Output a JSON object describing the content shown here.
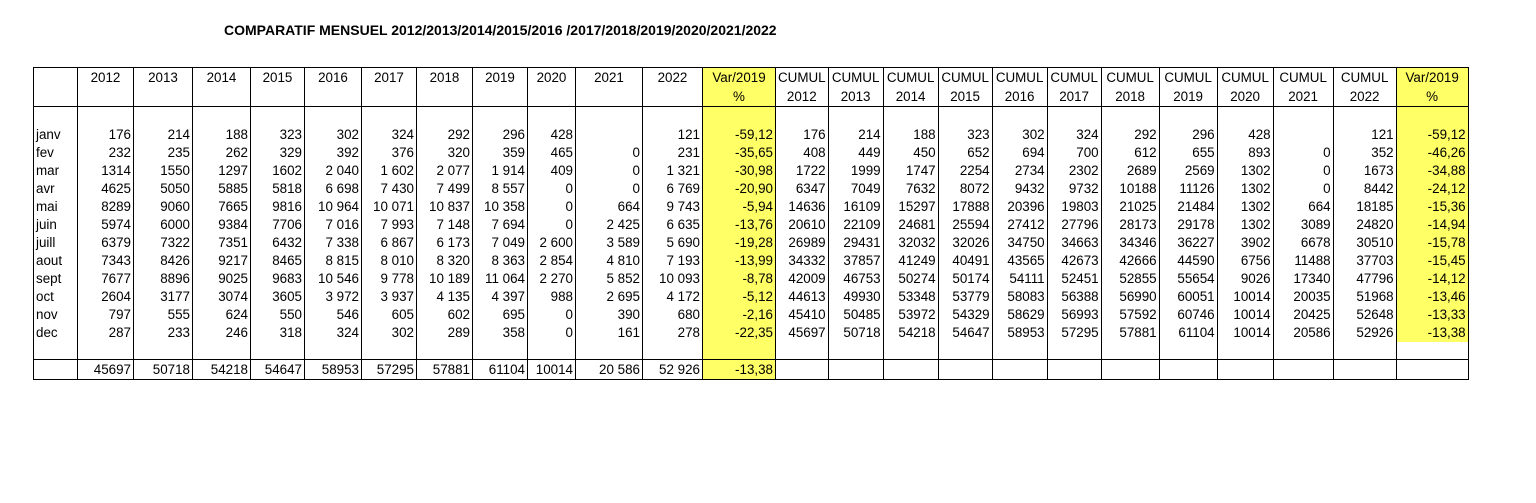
{
  "title": "COMPARATIF MENSUEL 2012/2013/2014/2015/2016 /2017/2018/2019/2020/2021/2022",
  "header_row1": [
    "",
    "2012",
    "2013",
    "2014",
    "2015",
    "2016",
    "2017",
    "2018",
    "2019",
    "2020",
    "2021",
    "2022",
    "Var/2019",
    "CUMUL",
    "CUMUL",
    "CUMUL",
    "CUMUL",
    "CUMUL",
    "CUMUL",
    "CUMUL",
    "CUMUL",
    "CUMUL",
    "CUMUL",
    "CUMUL",
    "Var/2019"
  ],
  "header_row2": [
    "",
    "",
    "",
    "",
    "",
    "",
    "",
    "",
    "",
    "",
    "",
    "",
    "%",
    "2012",
    "2013",
    "2014",
    "2015",
    "2016",
    "2017",
    "2018",
    "2019",
    "2020",
    "2021",
    "2022",
    "%"
  ],
  "rows": [
    [
      "janv",
      "176",
      "214",
      "188",
      "323",
      "302",
      "324",
      "292",
      "296",
      "428",
      "",
      "121",
      "-59,12",
      "176",
      "214",
      "188",
      "323",
      "302",
      "324",
      "292",
      "296",
      "428",
      "",
      "121",
      "-59,12"
    ],
    [
      "fev",
      "232",
      "235",
      "262",
      "329",
      "392",
      "376",
      "320",
      "359",
      "465",
      "0",
      "231",
      "-35,65",
      "408",
      "449",
      "450",
      "652",
      "694",
      "700",
      "612",
      "655",
      "893",
      "0",
      "352",
      "-46,26"
    ],
    [
      "mar",
      "1314",
      "1550",
      "1297",
      "1602",
      "2 040",
      "1 602",
      "2 077",
      "1 914",
      "409",
      "0",
      "1 321",
      "-30,98",
      "1722",
      "1999",
      "1747",
      "2254",
      "2734",
      "2302",
      "2689",
      "2569",
      "1302",
      "0",
      "1673",
      "-34,88"
    ],
    [
      "avr",
      "4625",
      "5050",
      "5885",
      "5818",
      "6 698",
      "7 430",
      "7 499",
      "8 557",
      "0",
      "0",
      "6 769",
      "-20,90",
      "6347",
      "7049",
      "7632",
      "8072",
      "9432",
      "9732",
      "10188",
      "11126",
      "1302",
      "0",
      "8442",
      "-24,12"
    ],
    [
      "mai",
      "8289",
      "9060",
      "7665",
      "9816",
      "10 964",
      "10 071",
      "10 837",
      "10 358",
      "0",
      "664",
      "9 743",
      "-5,94",
      "14636",
      "16109",
      "15297",
      "17888",
      "20396",
      "19803",
      "21025",
      "21484",
      "1302",
      "664",
      "18185",
      "-15,36"
    ],
    [
      "juin",
      "5974",
      "6000",
      "9384",
      "7706",
      "7 016",
      "7 993",
      "7 148",
      "7 694",
      "0",
      "2 425",
      "6 635",
      "-13,76",
      "20610",
      "22109",
      "24681",
      "25594",
      "27412",
      "27796",
      "28173",
      "29178",
      "1302",
      "3089",
      "24820",
      "-14,94"
    ],
    [
      "juill",
      "6379",
      "7322",
      "7351",
      "6432",
      "7 338",
      "6 867",
      "6 173",
      "7 049",
      "2 600",
      "3 589",
      "5 690",
      "-19,28",
      "26989",
      "29431",
      "32032",
      "32026",
      "34750",
      "34663",
      "34346",
      "36227",
      "3902",
      "6678",
      "30510",
      "-15,78"
    ],
    [
      "aout",
      "7343",
      "8426",
      "9217",
      "8465",
      "8 815",
      "8 010",
      "8 320",
      "8 363",
      "2 854",
      "4 810",
      "7 193",
      "-13,99",
      "34332",
      "37857",
      "41249",
      "40491",
      "43565",
      "42673",
      "42666",
      "44590",
      "6756",
      "11488",
      "37703",
      "-15,45"
    ],
    [
      "sept",
      "7677",
      "8896",
      "9025",
      "9683",
      "10 546",
      "9 778",
      "10 189",
      "11 064",
      "2 270",
      "5 852",
      "10 093",
      "-8,78",
      "42009",
      "46753",
      "50274",
      "50174",
      "54111",
      "52451",
      "52855",
      "55654",
      "9026",
      "17340",
      "47796",
      "-14,12"
    ],
    [
      "oct",
      "2604",
      "3177",
      "3074",
      "3605",
      "3 972",
      "3 937",
      "4 135",
      "4 397",
      "988",
      "2 695",
      "4 172",
      "-5,12",
      "44613",
      "49930",
      "53348",
      "53779",
      "58083",
      "56388",
      "56990",
      "60051",
      "10014",
      "20035",
      "51968",
      "-13,46"
    ],
    [
      "nov",
      "797",
      "555",
      "624",
      "550",
      "546",
      "605",
      "602",
      "695",
      "0",
      "390",
      "680",
      "-2,16",
      "45410",
      "50485",
      "53972",
      "54329",
      "58629",
      "56993",
      "57592",
      "60746",
      "10014",
      "20425",
      "52648",
      "-13,33"
    ],
    [
      "dec",
      "287",
      "233",
      "246",
      "318",
      "324",
      "302",
      "289",
      "358",
      "0",
      "161",
      "278",
      "-22,35",
      "45697",
      "50718",
      "54218",
      "54647",
      "58953",
      "57295",
      "57881",
      "61104",
      "10014",
      "20586",
      "52926",
      "-13,38"
    ]
  ],
  "totals": [
    "",
    "45697",
    "50718",
    "54218",
    "54647",
    "58953",
    "57295",
    "57881",
    "61104",
    "10014",
    "20 586",
    "52 926",
    "-13,38",
    "",
    "",
    "",
    "",
    "",
    "",
    "",
    "",
    "",
    "",
    "",
    ""
  ],
  "highlight_color": "#ffff66"
}
